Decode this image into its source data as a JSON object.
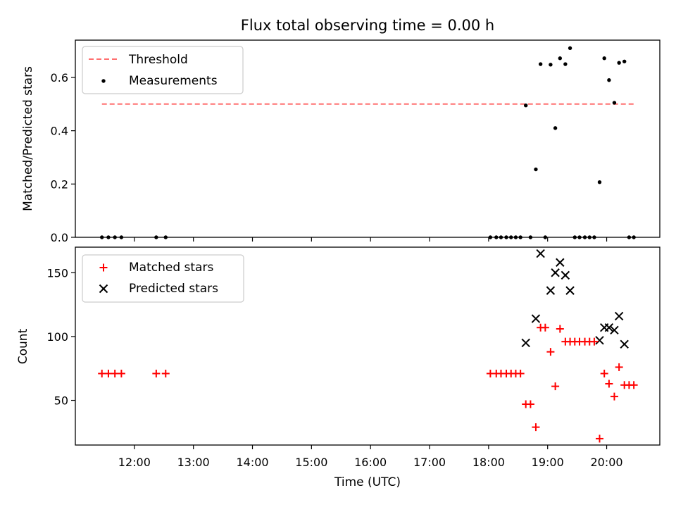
{
  "chart_data": [
    {
      "type": "scatter",
      "title": "Flux total observing time = 0.00 h",
      "ylabel": "Matched/Predicted stars",
      "xlabel": "",
      "x_unit": "hours (UTC, decimal)",
      "xlim": [
        11.0,
        20.9
      ],
      "ylim": [
        0.0,
        0.74
      ],
      "yticks": [
        0.0,
        0.2,
        0.4,
        0.6
      ],
      "ytick_labels": [
        "0.0",
        "0.2",
        "0.4",
        "0.6"
      ],
      "legend_position": "upper left",
      "threshold": {
        "name": "Threshold",
        "color": "#ff7070",
        "style": "dashed",
        "value": 0.5,
        "x_range": [
          11.45,
          20.5
        ]
      },
      "series": [
        {
          "name": "Measurements",
          "marker": "dot",
          "color": "#000000",
          "points": [
            {
              "x": 11.45,
              "y": 0.0
            },
            {
              "x": 11.56,
              "y": 0.0
            },
            {
              "x": 11.67,
              "y": 0.0
            },
            {
              "x": 11.78,
              "y": 0.0
            },
            {
              "x": 12.37,
              "y": 0.0
            },
            {
              "x": 12.53,
              "y": 0.0
            },
            {
              "x": 18.03,
              "y": 0.0
            },
            {
              "x": 18.13,
              "y": 0.0
            },
            {
              "x": 18.21,
              "y": 0.0
            },
            {
              "x": 18.3,
              "y": 0.0
            },
            {
              "x": 18.38,
              "y": 0.0
            },
            {
              "x": 18.46,
              "y": 0.0
            },
            {
              "x": 18.54,
              "y": 0.0
            },
            {
              "x": 18.63,
              "y": 0.495
            },
            {
              "x": 18.71,
              "y": 0.0
            },
            {
              "x": 18.8,
              "y": 0.255
            },
            {
              "x": 18.88,
              "y": 0.65
            },
            {
              "x": 18.96,
              "y": 0.0
            },
            {
              "x": 19.05,
              "y": 0.648
            },
            {
              "x": 19.13,
              "y": 0.41
            },
            {
              "x": 19.21,
              "y": 0.672
            },
            {
              "x": 19.3,
              "y": 0.65
            },
            {
              "x": 19.38,
              "y": 0.71
            },
            {
              "x": 19.46,
              "y": 0.0
            },
            {
              "x": 19.54,
              "y": 0.0
            },
            {
              "x": 19.63,
              "y": 0.0
            },
            {
              "x": 19.71,
              "y": 0.0
            },
            {
              "x": 19.79,
              "y": 0.0
            },
            {
              "x": 19.88,
              "y": 0.207
            },
            {
              "x": 19.96,
              "y": 0.672
            },
            {
              "x": 20.04,
              "y": 0.59
            },
            {
              "x": 20.13,
              "y": 0.505
            },
            {
              "x": 20.21,
              "y": 0.655
            },
            {
              "x": 20.3,
              "y": 0.66
            },
            {
              "x": 20.38,
              "y": 0.0
            },
            {
              "x": 20.46,
              "y": 0.0
            }
          ]
        }
      ]
    },
    {
      "type": "scatter",
      "title": "",
      "ylabel": "Count",
      "xlabel": "Time (UTC)",
      "x_unit": "hours (UTC, decimal)",
      "xlim": [
        11.0,
        20.9
      ],
      "ylim": [
        15,
        170
      ],
      "yticks": [
        50,
        100,
        150
      ],
      "ytick_labels": [
        "50",
        "100",
        "150"
      ],
      "xticks": [
        12,
        13,
        14,
        15,
        16,
        17,
        18,
        19,
        20
      ],
      "xtick_labels": [
        "12:00",
        "13:00",
        "14:00",
        "15:00",
        "16:00",
        "17:00",
        "18:00",
        "19:00",
        "20:00"
      ],
      "legend_position": "upper left",
      "series": [
        {
          "name": "Matched stars",
          "marker": "plus",
          "color": "#ff0000",
          "points": [
            {
              "x": 11.45,
              "y": 71
            },
            {
              "x": 11.56,
              "y": 71
            },
            {
              "x": 11.67,
              "y": 71
            },
            {
              "x": 11.78,
              "y": 71
            },
            {
              "x": 12.37,
              "y": 71
            },
            {
              "x": 12.53,
              "y": 71
            },
            {
              "x": 18.03,
              "y": 71
            },
            {
              "x": 18.13,
              "y": 71
            },
            {
              "x": 18.21,
              "y": 71
            },
            {
              "x": 18.3,
              "y": 71
            },
            {
              "x": 18.38,
              "y": 71
            },
            {
              "x": 18.46,
              "y": 71
            },
            {
              "x": 18.54,
              "y": 71
            },
            {
              "x": 18.63,
              "y": 47
            },
            {
              "x": 18.71,
              "y": 47
            },
            {
              "x": 18.8,
              "y": 29
            },
            {
              "x": 18.88,
              "y": 107
            },
            {
              "x": 18.96,
              "y": 107
            },
            {
              "x": 19.05,
              "y": 88
            },
            {
              "x": 19.13,
              "y": 61
            },
            {
              "x": 19.21,
              "y": 106
            },
            {
              "x": 19.3,
              "y": 96
            },
            {
              "x": 19.38,
              "y": 96
            },
            {
              "x": 19.46,
              "y": 96
            },
            {
              "x": 19.54,
              "y": 96
            },
            {
              "x": 19.63,
              "y": 96
            },
            {
              "x": 19.71,
              "y": 96
            },
            {
              "x": 19.79,
              "y": 96
            },
            {
              "x": 19.88,
              "y": 20
            },
            {
              "x": 19.96,
              "y": 71
            },
            {
              "x": 20.04,
              "y": 63
            },
            {
              "x": 20.13,
              "y": 53
            },
            {
              "x": 20.21,
              "y": 76
            },
            {
              "x": 20.3,
              "y": 62
            },
            {
              "x": 20.38,
              "y": 62
            },
            {
              "x": 20.46,
              "y": 62
            }
          ]
        },
        {
          "name": "Predicted stars",
          "marker": "x",
          "color": "#000000",
          "points": [
            {
              "x": 18.63,
              "y": 95
            },
            {
              "x": 18.8,
              "y": 114
            },
            {
              "x": 18.88,
              "y": 165
            },
            {
              "x": 19.05,
              "y": 136
            },
            {
              "x": 19.13,
              "y": 150
            },
            {
              "x": 19.21,
              "y": 158
            },
            {
              "x": 19.3,
              "y": 148
            },
            {
              "x": 19.38,
              "y": 136
            },
            {
              "x": 19.88,
              "y": 97
            },
            {
              "x": 19.96,
              "y": 107
            },
            {
              "x": 20.04,
              "y": 107
            },
            {
              "x": 20.13,
              "y": 105
            },
            {
              "x": 20.21,
              "y": 116
            },
            {
              "x": 20.3,
              "y": 94
            }
          ]
        }
      ]
    }
  ]
}
